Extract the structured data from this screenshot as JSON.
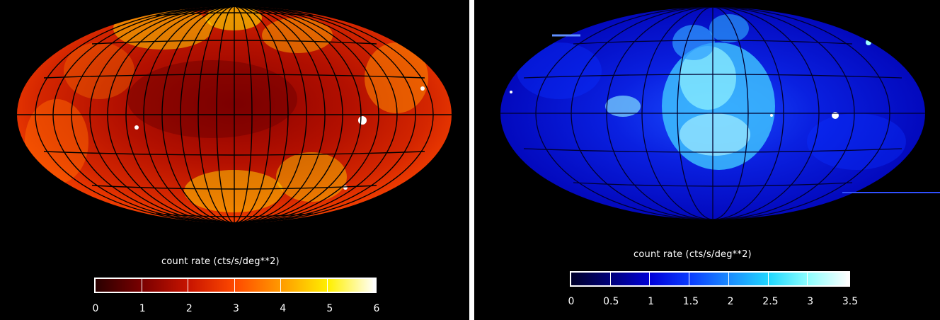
{
  "panels": [
    {
      "colormap": "red-yellow",
      "colorbar_label": "count rate  (cts/s/deg**2)",
      "ticks": [
        "0",
        "1",
        "2",
        "3",
        "4",
        "5",
        "6"
      ],
      "colors": [
        "#2a0000",
        "#7a0000",
        "#c81400",
        "#ff4a00",
        "#ff9c00",
        "#fff000",
        "#ffffff"
      ]
    },
    {
      "colormap": "blue-cyan",
      "colorbar_label": "count rate  (cts/s/deg**2)",
      "ticks": [
        "0",
        "0.5",
        "1",
        "1.5",
        "2",
        "2.5",
        "3",
        "3.5"
      ],
      "colors": [
        "#00002a",
        "#00007a",
        "#0000d8",
        "#0a3cff",
        "#1a8cff",
        "#20d8ff",
        "#90ffff",
        "#ffffff"
      ]
    }
  ]
}
